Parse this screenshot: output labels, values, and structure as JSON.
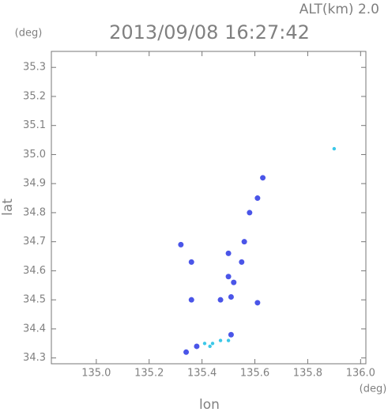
{
  "chart_data": {
    "type": "scatter",
    "title": "2013/09/08 16:27:42",
    "altitude_label": "ALT(km) 2.0",
    "y_unit": "(deg)",
    "x_unit": "(deg)",
    "x_label": "lon",
    "y_label": "lat",
    "xlim": [
      134.83,
      136.02
    ],
    "ylim": [
      34.28,
      35.355
    ],
    "xticks": [
      {
        "value": 135,
        "label": "135.0"
      },
      135.2,
      135.4,
      135.6,
      135.8,
      {
        "value": 136,
        "label": "136.0"
      }
    ],
    "yticks": [
      34.3,
      34.4,
      34.5,
      34.6,
      34.7,
      34.8,
      34.9,
      {
        "value": 35,
        "label": "35.0"
      },
      35.1,
      35.2,
      35.3
    ],
    "series": [
      {
        "color": "#4a55e8",
        "marker_radius": 3.5,
        "x": [
          135.63,
          135.61,
          135.58,
          135.32,
          135.36,
          135.5,
          135.56,
          135.55,
          135.5,
          135.52,
          135.51,
          135.47,
          135.61,
          135.36,
          135.51,
          135.34,
          135.38
        ],
        "y": [
          34.92,
          34.85,
          34.8,
          34.69,
          34.63,
          34.66,
          34.7,
          34.63,
          34.58,
          34.56,
          34.51,
          34.5,
          34.49,
          34.5,
          34.38,
          34.32,
          34.34
        ]
      },
      {
        "color": "#3cc8e8",
        "marker_radius": 2.2,
        "x": [
          135.9,
          135.41,
          135.43,
          135.44,
          135.47,
          135.5
        ],
        "y": [
          35.02,
          34.35,
          34.34,
          34.35,
          34.36,
          34.36
        ]
      }
    ]
  }
}
